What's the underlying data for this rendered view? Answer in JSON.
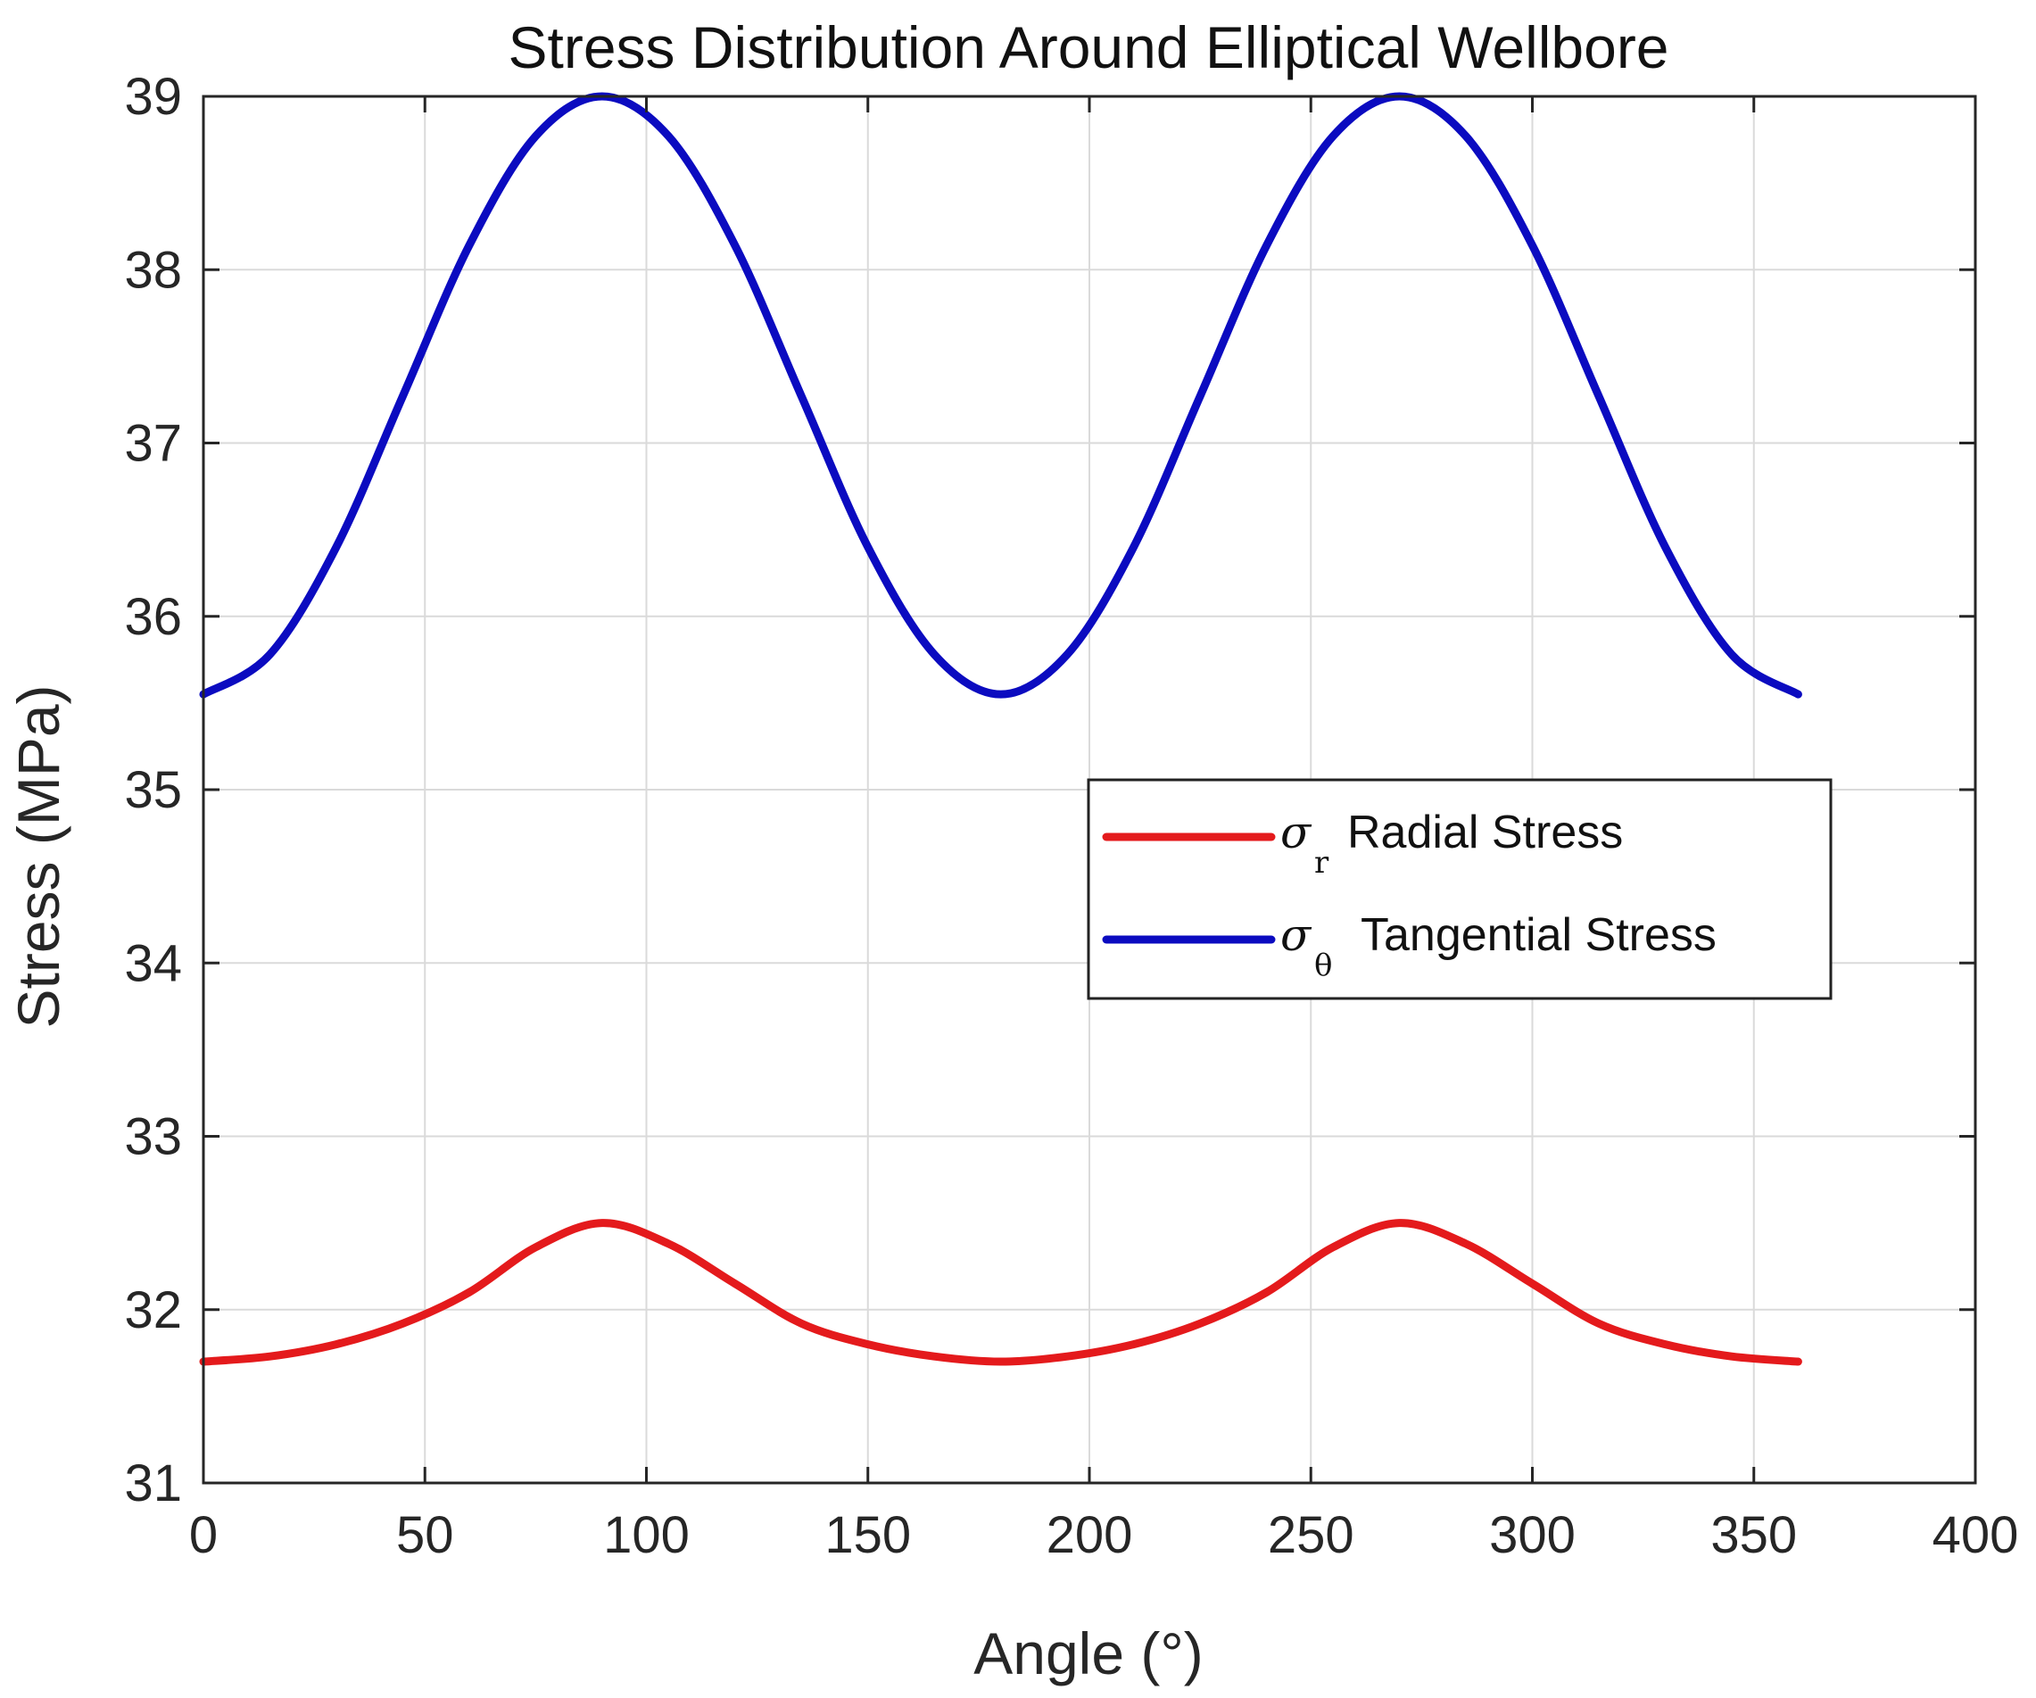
{
  "chart_data": {
    "type": "line",
    "title": "Stress Distribution Around Elliptical Wellbore",
    "xlabel": "Angle (°)",
    "ylabel": "Stress (MPa)",
    "xlim": [
      0,
      400
    ],
    "ylim": [
      31,
      39
    ],
    "xticks": [
      0,
      50,
      100,
      150,
      200,
      250,
      300,
      350,
      400
    ],
    "yticks": [
      31,
      32,
      33,
      34,
      35,
      36,
      37,
      38,
      39
    ],
    "xtick_labels": [
      "0",
      "50",
      "100",
      "150",
      "200",
      "250",
      "300",
      "350",
      "400"
    ],
    "ytick_labels": [
      "31",
      "32",
      "33",
      "34",
      "35",
      "36",
      "37",
      "38",
      "39"
    ],
    "grid": true,
    "legend_position": "center-right",
    "x": [
      0,
      15,
      30,
      45,
      60,
      75,
      90,
      105,
      120,
      135,
      150,
      165,
      180,
      195,
      210,
      225,
      240,
      255,
      270,
      285,
      300,
      315,
      330,
      345,
      360
    ],
    "series": [
      {
        "name": "Radial Stress",
        "symbol": "σ",
        "subscript": "r",
        "color": "#e41a1c",
        "values": [
          31.7,
          31.73,
          31.8,
          31.92,
          32.1,
          32.36,
          32.5,
          32.38,
          32.15,
          31.92,
          31.8,
          31.73,
          31.7,
          31.73,
          31.8,
          31.92,
          32.1,
          32.36,
          32.5,
          32.38,
          32.15,
          31.92,
          31.8,
          31.73,
          31.7
        ]
      },
      {
        "name": "Tangential Stress",
        "symbol": "σ",
        "subscript": "θ",
        "color": "#0b0bc0",
        "values": [
          35.55,
          35.78,
          36.4,
          37.27,
          38.14,
          38.77,
          39.0,
          38.77,
          38.14,
          37.27,
          36.4,
          35.78,
          35.55,
          35.78,
          36.4,
          37.27,
          38.14,
          38.77,
          39.0,
          38.77,
          38.14,
          37.27,
          36.4,
          35.78,
          35.55
        ]
      }
    ]
  }
}
